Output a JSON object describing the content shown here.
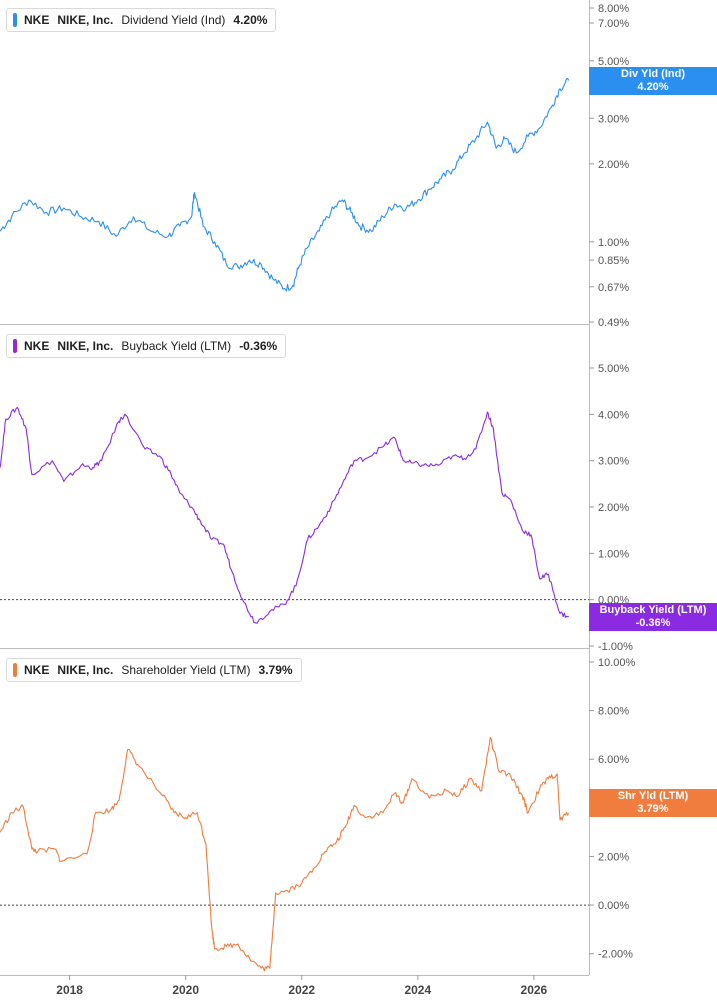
{
  "x_axis": {
    "ticks": [
      "2018",
      "2020",
      "2022",
      "2024",
      "2026"
    ]
  },
  "panels": [
    {
      "ticker": "NKE",
      "company": "NIKE, Inc.",
      "metric": "Dividend Yield (Ind)",
      "value": "4.20%",
      "color": "#2b8ff0",
      "badge": {
        "line1": "Div Yld (Ind)",
        "line2": "4.20%"
      }
    },
    {
      "ticker": "NKE",
      "company": "NIKE, Inc.",
      "metric": "Buyback Yield (LTM)",
      "value": "-0.36%",
      "color": "#8a2be2",
      "badge": {
        "line1": "Buyback Yield (LTM)",
        "line2": "-0.36%"
      }
    },
    {
      "ticker": "NKE",
      "company": "NIKE, Inc.",
      "metric": "Shareholder Yield (LTM)",
      "value": "3.79%",
      "color": "#f07c3e",
      "badge": {
        "line1": "Shr Yld (LTM)",
        "line2": "3.79%"
      }
    }
  ],
  "chart_data": [
    {
      "type": "line",
      "title": "NKE NIKE, Inc. Dividend Yield (Ind) 4.20%",
      "yscale": "log",
      "ylim": [
        0.49,
        8.0
      ],
      "yticks": [
        "8.00%",
        "7.00%",
        "5.00%",
        "3.00%",
        "2.00%",
        "1.00%",
        "0.85%",
        "0.67%",
        "0.49%"
      ],
      "ytick_values": [
        8.0,
        7.0,
        5.0,
        3.0,
        2.0,
        1.0,
        0.85,
        0.67,
        0.49
      ],
      "color": "#2b8ff0",
      "series": [
        {
          "x": [
            2016.8,
            2017.0,
            2017.3,
            2017.6,
            2017.9,
            2018.2,
            2018.5,
            2018.8,
            2019.1,
            2019.4,
            2019.7,
            2019.9,
            2020.1,
            2020.15,
            2020.3,
            2020.5,
            2020.7,
            2020.9,
            2021.1,
            2021.3,
            2021.5,
            2021.7,
            2021.85,
            2021.95,
            2022.1,
            2022.3,
            2022.5,
            2022.7,
            2022.85,
            2023.0,
            2023.2,
            2023.4,
            2023.6,
            2023.8,
            2024.0,
            2024.2,
            2024.4,
            2024.6,
            2024.8,
            2025.0,
            2025.2,
            2025.35,
            2025.5,
            2025.7,
            2025.9,
            2026.1,
            2026.3,
            2026.45,
            2026.6
          ],
          "y": [
            1.1,
            1.25,
            1.45,
            1.3,
            1.35,
            1.25,
            1.2,
            1.05,
            1.25,
            1.1,
            1.05,
            1.15,
            1.25,
            1.55,
            1.15,
            1.0,
            0.82,
            0.8,
            0.85,
            0.82,
            0.72,
            0.66,
            0.68,
            0.8,
            0.95,
            1.1,
            1.3,
            1.45,
            1.3,
            1.15,
            1.1,
            1.25,
            1.4,
            1.35,
            1.45,
            1.6,
            1.75,
            1.9,
            2.2,
            2.5,
            2.9,
            2.3,
            2.5,
            2.2,
            2.55,
            2.75,
            3.3,
            3.9,
            4.2
          ]
        }
      ]
    },
    {
      "type": "line",
      "title": "NKE NIKE, Inc. Buyback Yield (LTM) -0.36%",
      "ylim": [
        -1.0,
        5.0
      ],
      "yticks": [
        "5.00%",
        "4.00%",
        "3.00%",
        "2.00%",
        "1.00%",
        "0.00%",
        "-1.00%"
      ],
      "ytick_values": [
        5.0,
        4.0,
        3.0,
        2.0,
        1.0,
        0.0,
        -1.0
      ],
      "color": "#8a2be2",
      "series": [
        {
          "x": [
            2016.8,
            2016.9,
            2017.1,
            2017.25,
            2017.35,
            2017.7,
            2017.9,
            2018.2,
            2018.4,
            2018.55,
            2018.85,
            2018.95,
            2019.3,
            2019.55,
            2019.75,
            2019.9,
            2020.1,
            2020.25,
            2020.45,
            2020.65,
            2020.8,
            2021.0,
            2021.2,
            2021.45,
            2021.7,
            2021.9,
            2022.1,
            2022.3,
            2022.5,
            2022.7,
            2022.9,
            2023.1,
            2023.4,
            2023.6,
            2023.75,
            2023.9,
            2024.1,
            2024.35,
            2024.6,
            2024.8,
            2025.0,
            2025.2,
            2025.3,
            2025.45,
            2025.6,
            2025.8,
            2025.95,
            2026.1,
            2026.25,
            2026.45,
            2026.6
          ],
          "y": [
            2.85,
            3.9,
            4.15,
            3.7,
            2.7,
            3.0,
            2.55,
            2.9,
            2.85,
            3.0,
            3.85,
            4.0,
            3.25,
            3.1,
            2.7,
            2.3,
            2.0,
            1.7,
            1.3,
            1.2,
            0.6,
            -0.05,
            -0.5,
            -0.25,
            -0.1,
            0.3,
            1.3,
            1.6,
            2.0,
            2.5,
            3.0,
            3.05,
            3.3,
            3.5,
            3.0,
            2.95,
            2.9,
            2.9,
            3.1,
            3.05,
            3.25,
            4.05,
            3.7,
            2.3,
            2.15,
            1.5,
            1.4,
            0.45,
            0.55,
            -0.3,
            -0.36
          ]
        }
      ]
    },
    {
      "type": "line",
      "title": "NKE NIKE, Inc. Shareholder Yield (LTM) 3.79%",
      "ylim": [
        -3.0,
        10.0
      ],
      "yticks": [
        "10.00%",
        "8.00%",
        "6.00%",
        "4.00%",
        "2.00%",
        "0.00%",
        "-2.00%"
      ],
      "ytick_values": [
        10.0,
        8.0,
        6.0,
        4.0,
        2.0,
        0.0,
        -2.0
      ],
      "color": "#f07c3e",
      "series": [
        {
          "x": [
            2016.8,
            2017.0,
            2017.2,
            2017.35,
            2017.45,
            2017.75,
            2017.85,
            2018.3,
            2018.45,
            2018.7,
            2018.85,
            2019.0,
            2019.2,
            2019.6,
            2019.8,
            2020.0,
            2020.2,
            2020.35,
            2020.45,
            2020.5,
            2020.7,
            2020.9,
            2021.1,
            2021.3,
            2021.45,
            2021.55,
            2021.75,
            2022.0,
            2022.2,
            2022.4,
            2022.6,
            2022.75,
            2022.9,
            2023.1,
            2023.4,
            2023.6,
            2023.75,
            2023.9,
            2024.2,
            2024.5,
            2024.7,
            2024.9,
            2025.1,
            2025.25,
            2025.4,
            2025.6,
            2025.8,
            2025.9,
            2026.1,
            2026.25,
            2026.4,
            2026.45,
            2026.6
          ],
          "y": [
            3.0,
            3.8,
            4.05,
            2.3,
            2.2,
            2.3,
            1.8,
            2.1,
            3.8,
            3.9,
            4.3,
            6.4,
            5.7,
            4.5,
            3.8,
            3.6,
            3.8,
            2.5,
            -1.0,
            -1.8,
            -1.7,
            -1.6,
            -2.2,
            -2.6,
            -2.6,
            0.5,
            0.6,
            0.9,
            1.5,
            2.2,
            2.6,
            3.2,
            4.1,
            3.6,
            3.8,
            4.6,
            4.2,
            5.2,
            4.4,
            4.7,
            4.5,
            5.2,
            4.7,
            6.9,
            5.5,
            5.3,
            4.5,
            3.8,
            4.8,
            5.2,
            5.4,
            3.5,
            3.79
          ]
        }
      ]
    }
  ]
}
